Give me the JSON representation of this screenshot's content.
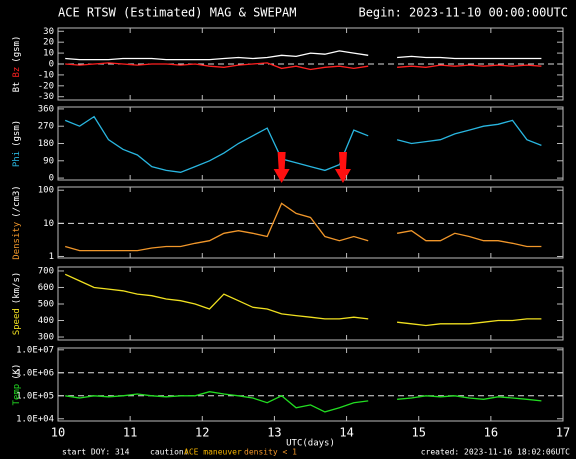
{
  "header": {
    "title": "ACE RTSW (Estimated) MAG & SWEPAM",
    "begin": "Begin: 2023-11-10 00:00:00UTC"
  },
  "footer": {
    "start": "start DOY: 314",
    "caution": "caution:",
    "maneuver": "ACE maneuver",
    "density": "density < 1",
    "created": "created: 2023-11-16 18:02:06UTC"
  },
  "chart_data": [
    {
      "type": "line",
      "y_label": "(gsm)",
      "xlim": [
        10,
        17
      ],
      "ylim": [
        -33,
        33
      ],
      "yticks": [
        -30,
        -20,
        -10,
        0,
        10,
        20,
        30
      ],
      "ref_lines": [
        0
      ],
      "x": [
        10.1,
        10.3,
        10.5,
        10.7,
        10.9,
        11.1,
        11.3,
        11.5,
        11.7,
        11.9,
        12.1,
        12.3,
        12.5,
        12.7,
        12.9,
        13.1,
        13.3,
        13.5,
        13.7,
        13.9,
        14.1,
        14.3,
        14.5,
        14.7,
        14.9,
        15.1,
        15.3,
        15.5,
        15.7,
        15.9,
        16.1,
        16.3,
        16.5,
        16.7
      ],
      "series": [
        {
          "name": "Bt",
          "color": "#ffffff",
          "values": [
            5,
            4,
            4,
            4,
            5,
            5,
            5,
            4,
            4,
            4,
            4,
            5,
            6,
            5,
            6,
            8,
            7,
            10,
            9,
            12,
            10,
            8,
            null,
            6,
            7,
            6,
            6,
            5,
            5,
            5,
            5,
            5,
            5,
            5
          ]
        },
        {
          "name": "Bz",
          "color": "#ff2020",
          "values": [
            0,
            -1,
            0,
            1,
            0,
            -1,
            0,
            0,
            -1,
            0,
            -2,
            -3,
            -1,
            0,
            1,
            -4,
            -2,
            -5,
            -3,
            -2,
            -4,
            -2,
            null,
            -3,
            -2,
            -3,
            -1,
            -2,
            -1,
            -2,
            -1,
            -2,
            -1,
            -2
          ]
        }
      ]
    },
    {
      "type": "line",
      "y_label": "(gsm)",
      "xlim": [
        10,
        17
      ],
      "ylim": [
        -10,
        370
      ],
      "yticks": [
        0,
        90,
        180,
        270,
        360
      ],
      "arrows_x": [
        13.1,
        13.95
      ],
      "x": [
        10.1,
        10.3,
        10.5,
        10.7,
        10.9,
        11.1,
        11.3,
        11.5,
        11.7,
        11.9,
        12.1,
        12.3,
        12.5,
        12.7,
        12.9,
        13.1,
        13.3,
        13.5,
        13.7,
        13.9,
        14.1,
        14.3,
        14.5,
        14.7,
        14.9,
        15.1,
        15.3,
        15.5,
        15.7,
        15.9,
        16.1,
        16.3,
        16.5,
        16.7
      ],
      "series": [
        {
          "name": "Phi",
          "color": "#29b6e0",
          "values": [
            300,
            270,
            320,
            200,
            150,
            120,
            60,
            40,
            30,
            60,
            90,
            130,
            180,
            220,
            260,
            100,
            80,
            60,
            40,
            70,
            250,
            220,
            null,
            200,
            180,
            190,
            200,
            230,
            250,
            270,
            280,
            300,
            200,
            170
          ]
        }
      ]
    },
    {
      "type": "line",
      "y_label": "(/cm3)",
      "log": true,
      "xlim": [
        10,
        17
      ],
      "ylim": [
        0.9,
        125
      ],
      "yticks": [
        1,
        10,
        100
      ],
      "ref_lines": [
        10
      ],
      "x": [
        10.1,
        10.3,
        10.5,
        10.7,
        10.9,
        11.1,
        11.3,
        11.5,
        11.7,
        11.9,
        12.1,
        12.3,
        12.5,
        12.7,
        12.9,
        13.1,
        13.3,
        13.5,
        13.7,
        13.9,
        14.1,
        14.3,
        14.5,
        14.7,
        14.9,
        15.1,
        15.3,
        15.5,
        15.7,
        15.9,
        16.1,
        16.3,
        16.5,
        16.7
      ],
      "series": [
        {
          "name": "Density",
          "color": "#f0962a",
          "values": [
            2,
            1.5,
            1.5,
            1.5,
            1.5,
            1.5,
            1.8,
            2,
            2,
            2.5,
            3,
            5,
            6,
            5,
            4,
            40,
            20,
            15,
            4,
            3,
            4,
            3,
            null,
            5,
            6,
            3,
            3,
            5,
            4,
            3,
            3,
            2.5,
            2,
            2
          ]
        }
      ]
    },
    {
      "type": "line",
      "y_label": "(km/s)",
      "xlim": [
        10,
        17
      ],
      "ylim": [
        282,
        724
      ],
      "yticks": [
        300,
        400,
        500,
        600,
        700
      ],
      "x": [
        10.1,
        10.3,
        10.5,
        10.7,
        10.9,
        11.1,
        11.3,
        11.5,
        11.7,
        11.9,
        12.1,
        12.3,
        12.5,
        12.7,
        12.9,
        13.1,
        13.3,
        13.5,
        13.7,
        13.9,
        14.1,
        14.3,
        14.5,
        14.7,
        14.9,
        15.1,
        15.3,
        15.5,
        15.7,
        15.9,
        16.1,
        16.3,
        16.5,
        16.7
      ],
      "series": [
        {
          "name": "Speed",
          "color": "#f0e020",
          "values": [
            680,
            640,
            600,
            590,
            580,
            560,
            550,
            530,
            520,
            500,
            470,
            560,
            520,
            480,
            470,
            440,
            430,
            420,
            410,
            410,
            420,
            410,
            null,
            390,
            380,
            370,
            380,
            380,
            380,
            390,
            400,
            400,
            410,
            410
          ]
        }
      ]
    },
    {
      "type": "line",
      "y_label": "(K)",
      "log": true,
      "xlim": [
        10,
        17
      ],
      "ylim": [
        8000,
        12000000
      ],
      "yticks": [
        {
          "value": 10000,
          "label": "1.0E+04"
        },
        {
          "value": 100000,
          "label": "1.0E+05"
        },
        {
          "value": 1000000,
          "label": "1.0E+06"
        },
        {
          "value": 10000000,
          "label": "1.0E+07"
        }
      ],
      "ref_lines": [
        100000,
        1000000
      ],
      "xticks": [
        10,
        11,
        12,
        13,
        14,
        15,
        16,
        17
      ],
      "x_label": "UTC(days)",
      "x": [
        10.1,
        10.3,
        10.5,
        10.7,
        10.9,
        11.1,
        11.3,
        11.5,
        11.7,
        11.9,
        12.1,
        12.3,
        12.5,
        12.7,
        12.9,
        13.1,
        13.3,
        13.5,
        13.7,
        13.9,
        14.1,
        14.3,
        14.5,
        14.7,
        14.9,
        15.1,
        15.3,
        15.5,
        15.7,
        15.9,
        16.1,
        16.3,
        16.5,
        16.7
      ],
      "series": [
        {
          "name": "Temp",
          "color": "#22dd22",
          "values": [
            100000,
            80000,
            100000,
            90000,
            100000,
            120000,
            100000,
            90000,
            100000,
            100000,
            150000,
            120000,
            100000,
            80000,
            50000,
            100000,
            30000,
            40000,
            20000,
            30000,
            50000,
            60000,
            null,
            70000,
            80000,
            100000,
            90000,
            100000,
            80000,
            70000,
            90000,
            80000,
            70000,
            60000
          ]
        }
      ]
    }
  ]
}
